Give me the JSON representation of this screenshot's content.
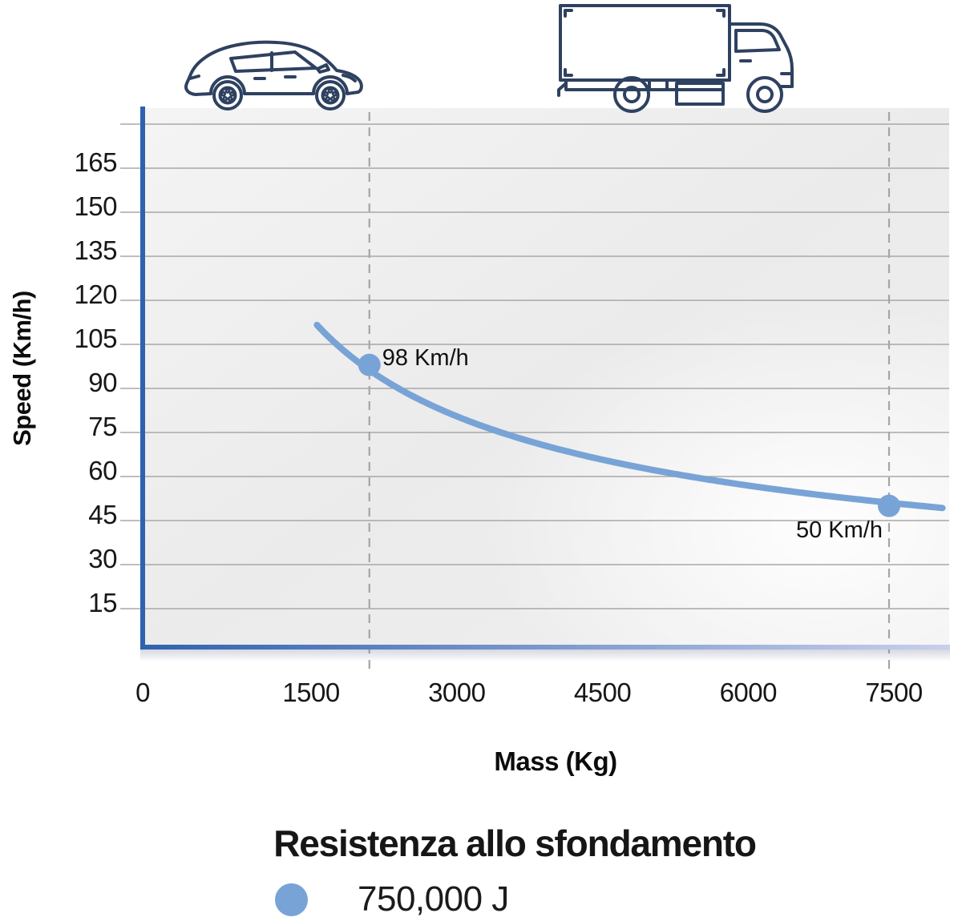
{
  "title": "Resistenza allo sfondamento",
  "legend": {
    "label": "750,000 J",
    "marker_color": "#78a3d6"
  },
  "icons": {
    "left_vehicle": "car",
    "right_vehicle": "truck"
  },
  "colors": {
    "axis_blue": "#2e62ae",
    "axis_fade": "#c9cfec",
    "curve_blue": "#78a3d6",
    "icon_navy": "#2e4160",
    "gridline": "#a8a8a8",
    "dashed_guide": "#a5a5a5"
  },
  "chart_data": {
    "type": "line",
    "title": "Resistenza allo sfondamento",
    "xlabel": "Mass (Kg)",
    "ylabel": "Speed (Km/h)",
    "x_ticks": [
      0,
      1500,
      3000,
      4500,
      6000,
      7500
    ],
    "y_ticks": [
      15,
      30,
      45,
      60,
      75,
      90,
      105,
      120,
      135,
      150,
      165
    ],
    "xlim": [
      0,
      8250
    ],
    "ylim": [
      0,
      180
    ],
    "grid": "horizontal",
    "legend_position": "bottom",
    "series": [
      {
        "name": "750,000 J",
        "energy_J": 750000,
        "model": "speed_kmh = 3.6 * sqrt(2 * E / mass_kg)",
        "mass_range_kg": [
          1560,
          8000
        ],
        "color": "#78a3d6"
      }
    ],
    "points": [
      {
        "mass_kg": 2100,
        "speed_kmh": 98,
        "label": "98 Km/h",
        "vehicle": "car",
        "label_position": "right"
      },
      {
        "mass_kg": 7450,
        "speed_kmh": 50,
        "label": "50 Km/h",
        "vehicle": "truck",
        "label_position": "below-left"
      }
    ]
  }
}
